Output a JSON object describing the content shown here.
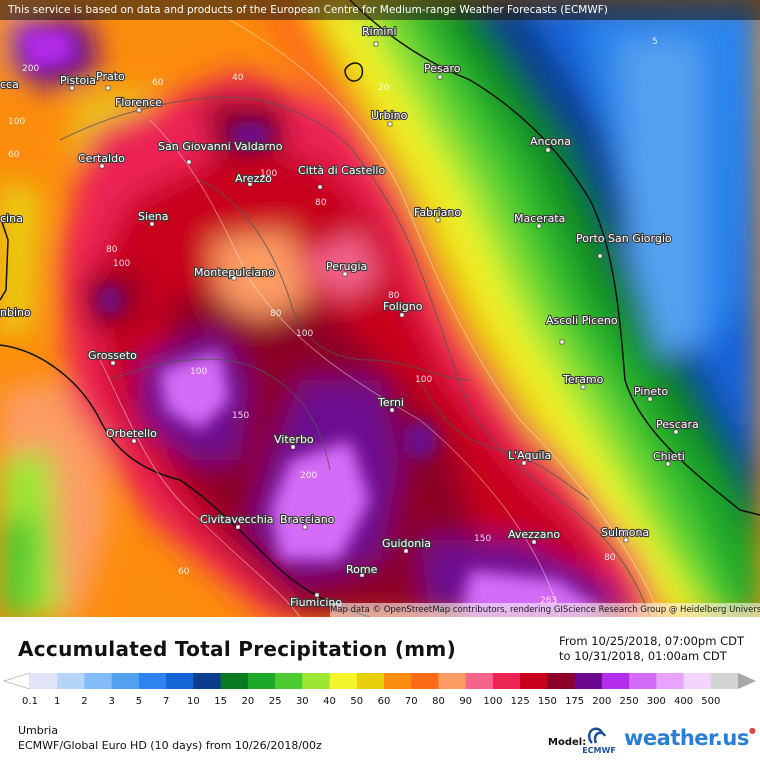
{
  "map": {
    "banner": "This service is based on data and products of the European Centre for Medium-range Weather Forecasts (ECMWF)",
    "credit": "Map data © OpenStreetMap contributors, rendering GIScience Research Group @ Heidelberg University",
    "cities": [
      "Rimini",
      "Pesaro",
      "Pistoia",
      "Prato",
      "Florence",
      "Urbino",
      "Ancona",
      "San Giovanni Valdarno",
      "Certaldo",
      "Arezzo",
      "Città di Castello",
      "Siena",
      "Fabriano",
      "Macerata",
      "Porto San Giorgio",
      "Perugia",
      "Montepulciano",
      "Foligno",
      "Ascoli Piceno",
      "Grosseto",
      "Teramo",
      "Pineto",
      "Terni",
      "Pescara",
      "Orbetello",
      "Viterbo",
      "L'Aquila",
      "Chieti",
      "Civitavecchia",
      "Bracciano",
      "Sulmona",
      "Avezzano",
      "Guidonia",
      "Rome",
      "Fiumicino"
    ],
    "contour_labels": [
      "200",
      "60",
      "100",
      "40",
      "20",
      "5",
      "60",
      "100",
      "100",
      "80",
      "80",
      "80",
      "80",
      "100",
      "100",
      "150",
      "200",
      "100",
      "150",
      "80",
      "60",
      "263"
    ],
    "partial_labels": [
      "cca",
      "cina",
      "nbino"
    ]
  },
  "title": "Accumulated Total Precipitation (mm)",
  "date_range": {
    "from": "From 10/25/2018, 07:00pm CDT",
    "to": "to 10/31/2018, 01:00am CDT"
  },
  "legend": {
    "values": [
      "0.1",
      "1",
      "2",
      "3",
      "5",
      "7",
      "10",
      "15",
      "20",
      "25",
      "30",
      "40",
      "50",
      "60",
      "70",
      "80",
      "90",
      "100",
      "125",
      "150",
      "175",
      "200",
      "250",
      "300",
      "400",
      "500"
    ],
    "colors": [
      "#e4e4f8",
      "#b4d4f8",
      "#84bcf8",
      "#54a0f0",
      "#2c84ec",
      "#1464d8",
      "#0c3c8c",
      "#0a7a20",
      "#1ea82a",
      "#4ccc30",
      "#9ce634",
      "#f4f42c",
      "#e8d00c",
      "#fc8c0c",
      "#fc6c14",
      "#fc9c64",
      "#f4648c",
      "#ec2454",
      "#c8001c",
      "#8c0028",
      "#6c0890",
      "#b42cec",
      "#d46cf8",
      "#e8a4fc",
      "#f4d4fc",
      "#d4d4d4"
    ]
  },
  "region": "Umbria",
  "model": "ECMWF/Global Euro HD (10 days) from 10/26/2018/00z",
  "model_label": "Model:",
  "logo_text": "ECMWF",
  "brand": "weather.us"
}
